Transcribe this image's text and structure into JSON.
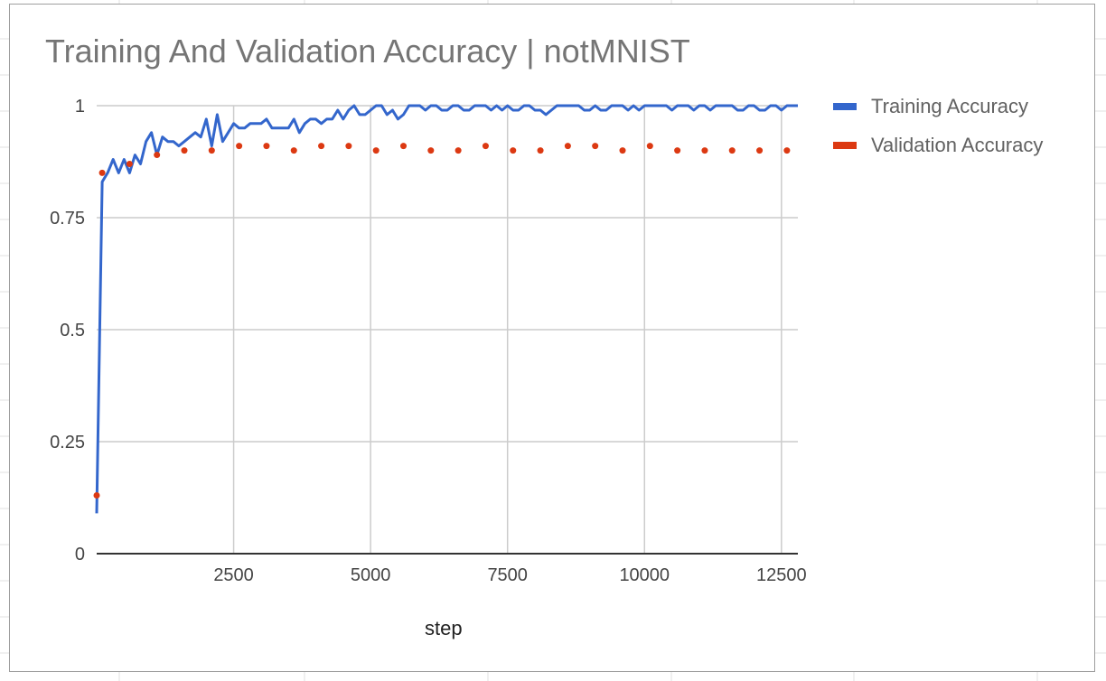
{
  "chart_data": {
    "type": "line",
    "title": "Training And Validation Accuracy | notMNIST",
    "xlabel": "step",
    "ylabel": "",
    "xlim": [
      0,
      12800
    ],
    "ylim": [
      0,
      1
    ],
    "x_ticks": [
      2500,
      5000,
      7500,
      10000,
      12500
    ],
    "x_tick_labels": [
      "2500",
      "5000",
      "7500",
      "10000",
      "12500"
    ],
    "y_ticks": [
      0,
      0.25,
      0.5,
      0.75,
      1
    ],
    "y_tick_labels": [
      "0",
      "0.25",
      "0.5",
      "0.75",
      "1"
    ],
    "grid": true,
    "legend": "right",
    "series": [
      {
        "name": "Training Accuracy",
        "style": "line",
        "color": "#3366cc",
        "x": [
          0,
          100,
          200,
          300,
          400,
          500,
          600,
          700,
          800,
          900,
          1000,
          1100,
          1200,
          1300,
          1400,
          1500,
          1600,
          1700,
          1800,
          1900,
          2000,
          2100,
          2200,
          2300,
          2400,
          2500,
          2600,
          2700,
          2800,
          2900,
          3000,
          3100,
          3200,
          3300,
          3400,
          3500,
          3600,
          3700,
          3800,
          3900,
          4000,
          4100,
          4200,
          4300,
          4400,
          4500,
          4600,
          4700,
          4800,
          4900,
          5000,
          5100,
          5200,
          5300,
          5400,
          5500,
          5600,
          5700,
          5800,
          5900,
          6000,
          6100,
          6200,
          6300,
          6400,
          6500,
          6600,
          6700,
          6800,
          6900,
          7000,
          7100,
          7200,
          7300,
          7400,
          7500,
          7600,
          7700,
          7800,
          7900,
          8000,
          8100,
          8200,
          8300,
          8400,
          8500,
          8600,
          8700,
          8800,
          8900,
          9000,
          9100,
          9200,
          9300,
          9400,
          9500,
          9600,
          9700,
          9800,
          9900,
          10000,
          10100,
          10200,
          10300,
          10400,
          10500,
          10600,
          10700,
          10800,
          10900,
          11000,
          11100,
          11200,
          11300,
          11400,
          11500,
          11600,
          11700,
          11800,
          11900,
          12000,
          12100,
          12200,
          12300,
          12400,
          12500,
          12600,
          12700,
          12800
        ],
        "values": [
          0.09,
          0.83,
          0.85,
          0.88,
          0.85,
          0.88,
          0.85,
          0.89,
          0.87,
          0.92,
          0.94,
          0.89,
          0.93,
          0.92,
          0.92,
          0.91,
          0.92,
          0.93,
          0.94,
          0.93,
          0.97,
          0.91,
          0.98,
          0.92,
          0.94,
          0.96,
          0.95,
          0.95,
          0.96,
          0.96,
          0.96,
          0.97,
          0.95,
          0.95,
          0.95,
          0.95,
          0.97,
          0.94,
          0.96,
          0.97,
          0.97,
          0.96,
          0.97,
          0.97,
          0.99,
          0.97,
          0.99,
          1.0,
          0.98,
          0.98,
          0.99,
          1.0,
          1.0,
          0.98,
          0.99,
          0.97,
          0.98,
          1.0,
          1.0,
          1.0,
          0.99,
          1.0,
          1.0,
          0.99,
          0.99,
          1.0,
          1.0,
          0.99,
          0.99,
          1.0,
          1.0,
          1.0,
          0.99,
          1.0,
          0.99,
          1.0,
          0.99,
          0.99,
          1.0,
          1.0,
          0.99,
          0.99,
          0.98,
          0.99,
          1.0,
          1.0,
          1.0,
          1.0,
          1.0,
          0.99,
          0.99,
          1.0,
          0.99,
          0.99,
          1.0,
          1.0,
          1.0,
          0.99,
          1.0,
          0.99,
          1.0,
          1.0,
          1.0,
          1.0,
          1.0,
          0.99,
          1.0,
          1.0,
          1.0,
          0.99,
          1.0,
          1.0,
          0.99,
          1.0,
          1.0,
          1.0,
          1.0,
          0.99,
          0.99,
          1.0,
          1.0,
          0.99,
          0.99,
          1.0,
          1.0,
          0.99,
          1.0,
          1.0,
          1.0
        ]
      },
      {
        "name": "Validation Accuracy",
        "style": "dots",
        "color": "#dc3912",
        "x": [
          0,
          100,
          600,
          1100,
          1600,
          2100,
          2600,
          3100,
          3600,
          4100,
          4600,
          5100,
          5600,
          6100,
          6600,
          7100,
          7600,
          8100,
          8600,
          9100,
          9600,
          10100,
          10600,
          11100,
          11600,
          12100,
          12600
        ],
        "values": [
          0.13,
          0.85,
          0.87,
          0.89,
          0.9,
          0.9,
          0.91,
          0.91,
          0.9,
          0.91,
          0.91,
          0.9,
          0.91,
          0.9,
          0.9,
          0.91,
          0.9,
          0.9,
          0.91,
          0.91,
          0.9,
          0.91,
          0.9,
          0.9,
          0.9,
          0.9,
          0.9
        ]
      }
    ]
  }
}
